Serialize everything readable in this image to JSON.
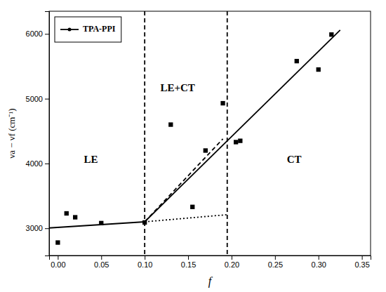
{
  "chart_data": {
    "type": "scatter",
    "xlabel": "f",
    "ylabel": "νa − νf (cm⁻¹)",
    "xlim": [
      -0.01,
      0.36
    ],
    "ylim": [
      2580,
      6350
    ],
    "xticks": [
      {
        "value": 0.0,
        "label": "0.00"
      },
      0.05,
      {
        "value": 0.1,
        "label": "0.10"
      },
      0.15,
      {
        "value": 0.2,
        "label": "0.20"
      },
      0.25,
      {
        "value": 0.3,
        "label": "0.30"
      },
      0.35
    ],
    "yticks": [
      3000,
      4000,
      5000,
      6000
    ],
    "grid": false,
    "legend": "upper left",
    "series": [
      {
        "type": "scatter",
        "marker": "square",
        "color": "black",
        "x": [
          0.0,
          0.01,
          0.02,
          0.05,
          0.1,
          0.13,
          0.155,
          0.17,
          0.19,
          0.205,
          0.21,
          0.275,
          0.3,
          0.315
        ],
        "values": [
          2780,
          3230,
          3170,
          3080,
          3090,
          4600,
          3330,
          4200,
          4930,
          4330,
          4350,
          5580,
          5450,
          5990
        ]
      },
      {
        "name": "TPA-PPI",
        "type": "line",
        "line_style": "solid",
        "color": "black",
        "x": [
          -0.01,
          0.1
        ],
        "values": [
          3005,
          3100
        ]
      },
      {
        "type": "line",
        "line_style": "solid",
        "color": "black",
        "x": [
          0.1,
          0.325
        ],
        "values": [
          3100,
          6060
        ]
      },
      {
        "type": "line",
        "line_style": "dashed",
        "color": "black",
        "x": [
          0.1,
          0.19
        ],
        "values": [
          3100,
          4380
        ]
      },
      {
        "type": "line",
        "line_style": "dotted",
        "color": "black",
        "x": [
          0.1,
          0.195
        ],
        "values": [
          3100,
          3210
        ]
      }
    ],
    "vlines": [
      {
        "x": 0.1,
        "line_style": "dashed",
        "color": "black"
      },
      {
        "x": 0.195,
        "line_style": "dashed",
        "color": "black"
      }
    ],
    "annotations": [
      {
        "text": "LE",
        "x": 0.038,
        "y": 4050
      },
      {
        "text": "LE+CT",
        "x": 0.138,
        "y": 5150
      },
      {
        "text": "CT",
        "x": 0.272,
        "y": 4050
      }
    ]
  }
}
